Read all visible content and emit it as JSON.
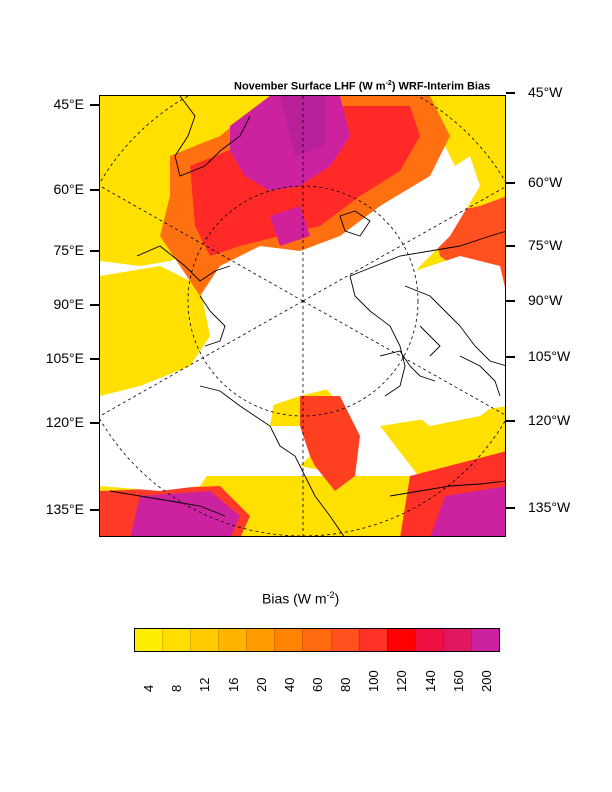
{
  "title": {
    "prefix": "November Surface LHF (W m",
    "sup": "-2",
    "suffix": ") WRF-Interim Bias"
  },
  "left_labels": [
    "45°E",
    "60°E",
    "75°E",
    "90°E",
    "105°E",
    "120°E",
    "135°E"
  ],
  "right_labels": [
    "45°W",
    "60°W",
    "75°W",
    "90°W",
    "105°W",
    "120°W",
    "135°W"
  ],
  "colorbar": {
    "title_prefix": "Bias (W m",
    "title_sup": "-2",
    "title_suffix": ")",
    "labels": [
      "4",
      "8",
      "12",
      "16",
      "20",
      "40",
      "60",
      "80",
      "100",
      "120",
      "140",
      "160",
      "200"
    ],
    "colors": [
      "#ffee00",
      "#ffdd00",
      "#ffcc00",
      "#ffb400",
      "#ff9c00",
      "#ff8400",
      "#ff6a10",
      "#ff5020",
      "#ff3228",
      "#ff0000",
      "#ee1040",
      "#e01860",
      "#cc22a0"
    ]
  }
}
